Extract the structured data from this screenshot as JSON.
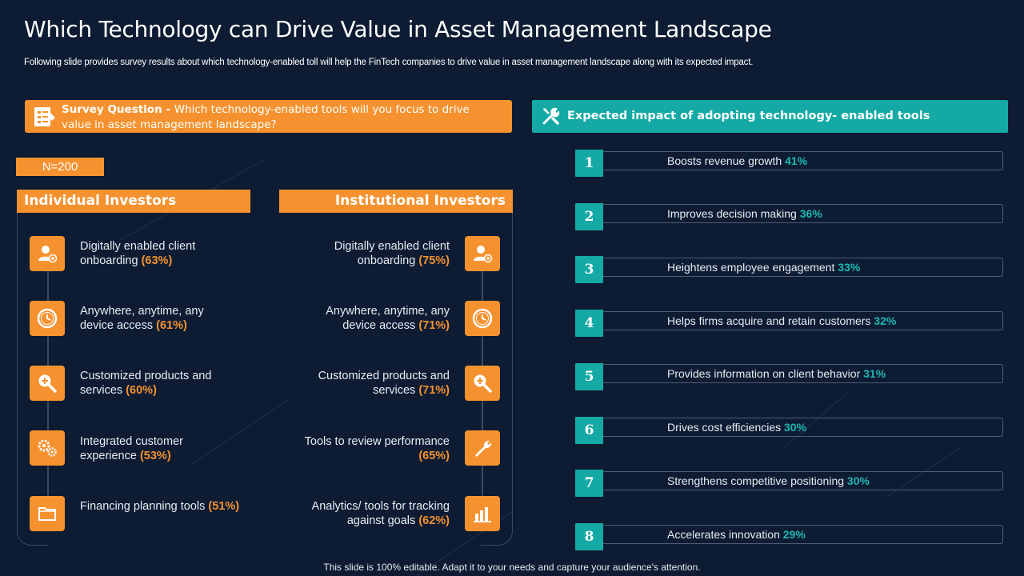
{
  "slide": {
    "title": "Which Technology can Drive Value in Asset Management Landscape",
    "subtitle": "Following slide provides survey results about which technology-enabled toll will help the FinTech companies to drive value in asset management landscape along with its expected impact.",
    "footer": "This slide is 100% editable. Adapt it to your needs and capture your audience's attention."
  },
  "survey": {
    "label": "Survey Question",
    "separator": " - ",
    "question": "Which technology-enabled tools will you focus to drive value in asset management landscape?",
    "sample": "N=200",
    "icon": "survey-document-icon"
  },
  "individual": {
    "heading": "Individual Investors",
    "items": [
      {
        "text": "Digitally enabled client onboarding ",
        "pct": "(63%)",
        "icon": "user-add-icon"
      },
      {
        "text": "Anywhere, anytime, any device access ",
        "pct": "(61%)",
        "icon": "clock-icon"
      },
      {
        "text": "Customized products and services ",
        "pct": "(60%)",
        "icon": "search-plus-icon"
      },
      {
        "text": "Integrated customer experience ",
        "pct": "(53%)",
        "icon": "gears-icon"
      },
      {
        "text": "Financing planning tools ",
        "pct": "(51%)",
        "icon": "folder-icon"
      }
    ]
  },
  "institutional": {
    "heading": "Institutional Investors",
    "items": [
      {
        "text": "Digitally enabled client onboarding ",
        "pct": "(75%)",
        "icon": "user-add-icon"
      },
      {
        "text": "Anywhere, anytime, any device access ",
        "pct": "(71%)",
        "icon": "clock-icon"
      },
      {
        "text": "Customized products and services ",
        "pct": "(71%)",
        "icon": "search-plus-icon"
      },
      {
        "text": "Tools to review performance ",
        "pct": "(65%)",
        "icon": "wrench-icon"
      },
      {
        "text": "Analytics/ tools for tracking against goals ",
        "pct": "(62%)",
        "icon": "bar-chart-icon"
      }
    ]
  },
  "impact": {
    "heading": "Expected impact of adopting technology- enabled tools",
    "icon": "tools-icon",
    "items": [
      {
        "num": "1",
        "text": "Boosts revenue growth ",
        "pct": "41%"
      },
      {
        "num": "2",
        "text": "Improves decision making ",
        "pct": "36%"
      },
      {
        "num": "3",
        "text": "Heightens employee engagement ",
        "pct": "33%"
      },
      {
        "num": "4",
        "text": "Helps firms acquire and retain customers ",
        "pct": "32%"
      },
      {
        "num": "5",
        "text": "Provides information on client behavior ",
        "pct": "31%"
      },
      {
        "num": "6",
        "text": "Drives cost efficiencies ",
        "pct": "30%"
      },
      {
        "num": "7",
        "text": "Strengthens competitive positioning ",
        "pct": "30%"
      },
      {
        "num": "8",
        "text": "Accelerates innovation ",
        "pct": "29%"
      }
    ]
  },
  "colors": {
    "background": "#0d1c33",
    "orange": "#f5922f",
    "teal": "#14a9a4",
    "teal_text": "#1cb8b2"
  }
}
